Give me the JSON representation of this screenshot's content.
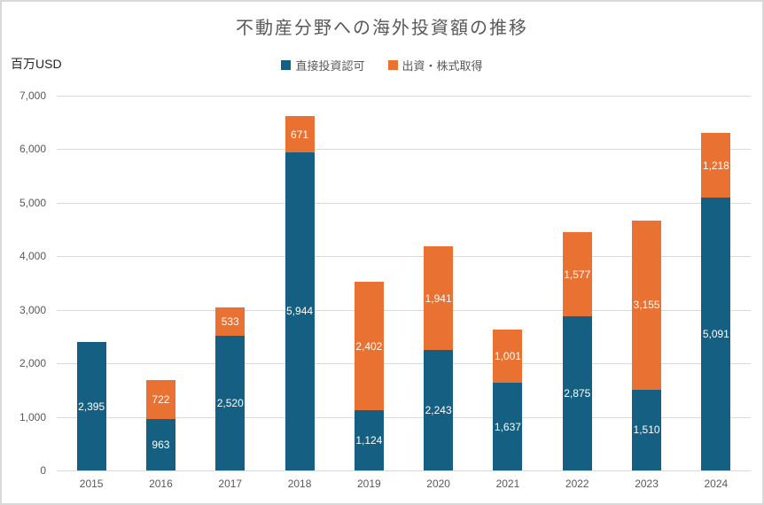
{
  "chart_data": {
    "type": "bar",
    "stacked": true,
    "title": "不動産分野への海外投資額の推移",
    "unit_label": "百万USD",
    "categories": [
      "2015",
      "2016",
      "2017",
      "2018",
      "2019",
      "2020",
      "2021",
      "2022",
      "2023",
      "2024"
    ],
    "series": [
      {
        "name": "直接投資認可",
        "color": "#156082",
        "values": [
          2395,
          963,
          2520,
          5944,
          1124,
          2243,
          1637,
          2875,
          1510,
          5091
        ]
      },
      {
        "name": "出資・株式取得",
        "color": "#E97132",
        "values": [
          0,
          722,
          533,
          671,
          2402,
          1941,
          1001,
          1577,
          3155,
          1218
        ]
      }
    ],
    "ylim": [
      0,
      7000
    ],
    "yticks": [
      0,
      1000,
      2000,
      3000,
      4000,
      5000,
      6000,
      7000
    ],
    "grid": true,
    "legend_position": "top",
    "data_labels": true,
    "data_label_color": "#FFFFFF",
    "grid_color": "#D9D9D9",
    "text_color": "#595959",
    "background": "#FFFFFF"
  }
}
